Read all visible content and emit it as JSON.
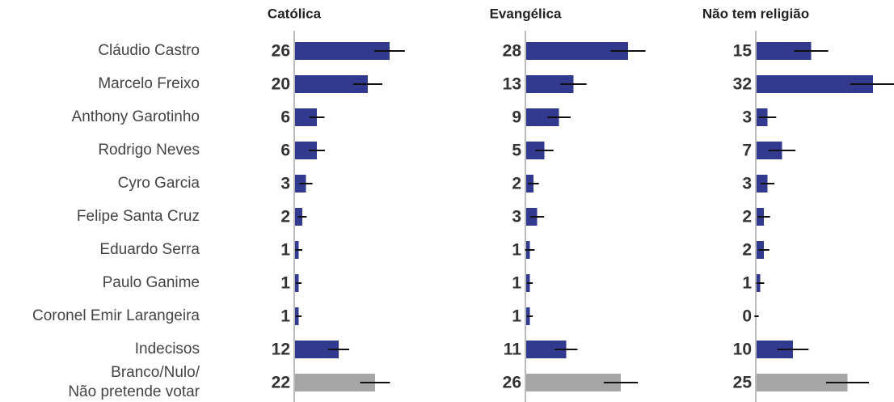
{
  "chart_data": {
    "type": "bar",
    "categories": [
      "Cláudio Castro",
      "Marcelo Freixo",
      "Anthony Garotinho",
      "Rodrigo Neves",
      "Cyro Garcia",
      "Felipe Santa Cruz",
      "Eduardo Serra",
      "Paulo Ganime",
      "Coronel Emir Larangeira",
      "Indecisos",
      "Branco/Nulo/\nNão pretende votar"
    ],
    "series": [
      {
        "name": "Católica",
        "values": [
          26,
          20,
          6,
          6,
          3,
          2,
          1,
          1,
          1,
          12,
          22
        ],
        "errors": [
          4.2,
          4,
          2.1,
          2.2,
          1.8,
          1.2,
          1,
          0.8,
          0.8,
          2.9,
          4.1
        ],
        "colors": [
          "#313a8f",
          "#313a8f",
          "#313a8f",
          "#313a8f",
          "#313a8f",
          "#313a8f",
          "#313a8f",
          "#313a8f",
          "#313a8f",
          "#313a8f",
          "#a6a6a6"
        ]
      },
      {
        "name": "Evangélica",
        "values": [
          28,
          13,
          9,
          5,
          2,
          3,
          1,
          1,
          1,
          11,
          26
        ],
        "errors": [
          4.8,
          3.6,
          3.2,
          2.5,
          1.5,
          1.9,
          1.3,
          0.8,
          0.8,
          3.1,
          4.7
        ],
        "colors": [
          "#313a8f",
          "#313a8f",
          "#313a8f",
          "#313a8f",
          "#313a8f",
          "#313a8f",
          "#313a8f",
          "#313a8f",
          "#313a8f",
          "#313a8f",
          "#a6a6a6"
        ]
      },
      {
        "name": "Não tem religião",
        "values": [
          15,
          32,
          3,
          7,
          3,
          2,
          2,
          1,
          0,
          10,
          25
        ],
        "errors": [
          4.7,
          6.3,
          2.4,
          3.7,
          1.9,
          1.7,
          1.5,
          1.1,
          0.6,
          4.3,
          5.9
        ],
        "colors": [
          "#313a8f",
          "#313a8f",
          "#313a8f",
          "#313a8f",
          "#313a8f",
          "#313a8f",
          "#313a8f",
          "#313a8f",
          "#313a8f",
          "#313a8f",
          "#a6a6a6"
        ]
      }
    ]
  }
}
